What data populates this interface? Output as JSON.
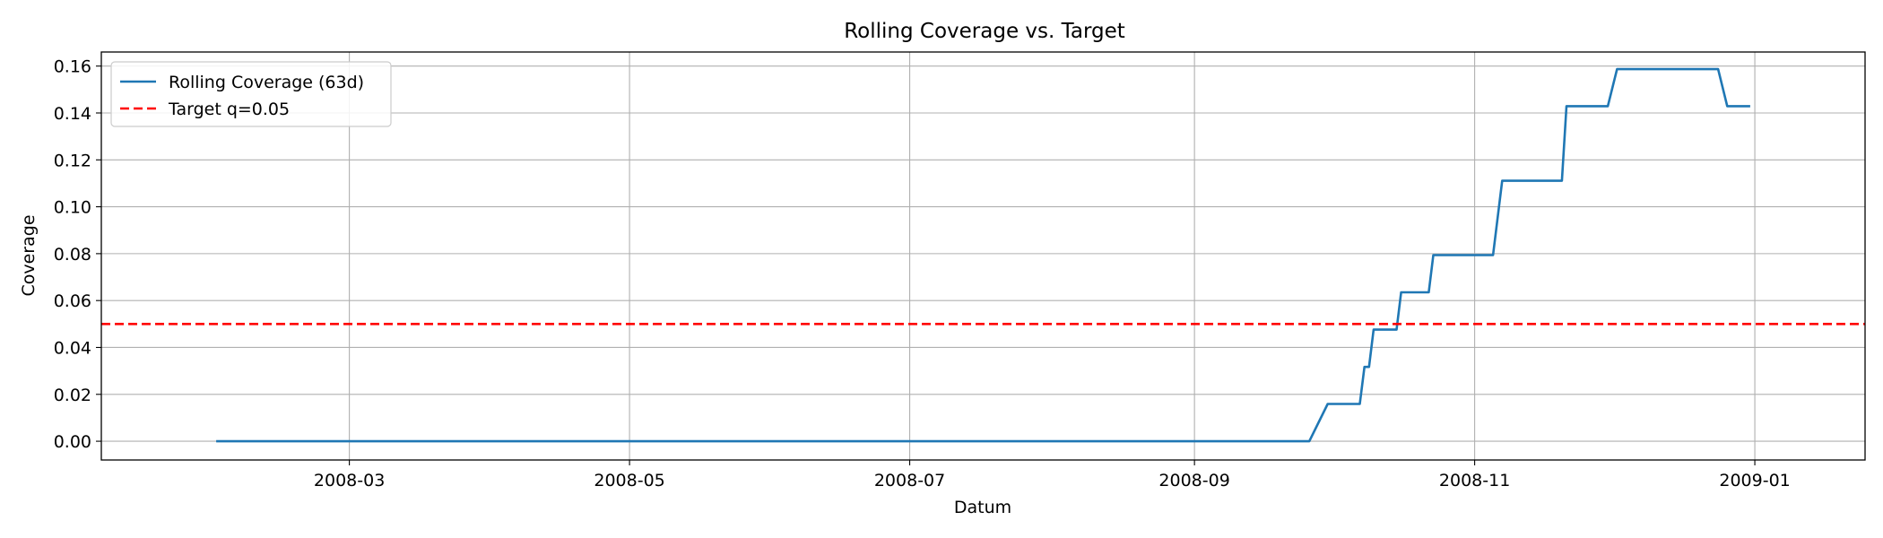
{
  "chart_data": {
    "type": "line",
    "title": "Rolling Coverage vs. Target",
    "xlabel": "Datum",
    "ylabel": "Coverage",
    "xlim": [
      "2008-01-07",
      "2009-01-25"
    ],
    "ylim": [
      -0.008,
      0.166
    ],
    "x_ticks": [
      "2008-03",
      "2008-05",
      "2008-07",
      "2008-09",
      "2008-11",
      "2009-01"
    ],
    "y_ticks": [
      "0.00",
      "0.02",
      "0.04",
      "0.06",
      "0.08",
      "0.10",
      "0.12",
      "0.14",
      "0.16"
    ],
    "grid": true,
    "legend_position": "top-left",
    "series": [
      {
        "name": "Rolling Coverage (63d)",
        "color": "#1f77b4",
        "style": "solid",
        "points": [
          [
            "2008-02-01",
            0.0
          ],
          [
            "2008-09-26",
            0.0
          ],
          [
            "2008-09-30",
            0.0159
          ],
          [
            "2008-10-07",
            0.0159
          ],
          [
            "2008-10-08",
            0.0317
          ],
          [
            "2008-10-09",
            0.0317
          ],
          [
            "2008-10-10",
            0.0476
          ],
          [
            "2008-10-15",
            0.0476
          ],
          [
            "2008-10-16",
            0.0635
          ],
          [
            "2008-10-22",
            0.0635
          ],
          [
            "2008-10-23",
            0.0794
          ],
          [
            "2008-11-05",
            0.0794
          ],
          [
            "2008-11-07",
            0.1111
          ],
          [
            "2008-11-20",
            0.1111
          ],
          [
            "2008-11-21",
            0.1429
          ],
          [
            "2008-11-30",
            0.1429
          ],
          [
            "2008-12-02",
            0.1587
          ],
          [
            "2008-12-24",
            0.1587
          ],
          [
            "2008-12-26",
            0.1429
          ],
          [
            "2008-12-31",
            0.1429
          ]
        ]
      },
      {
        "name": "Target q=0.05",
        "color": "#ff0000",
        "style": "dashed",
        "hline": 0.05
      }
    ]
  }
}
